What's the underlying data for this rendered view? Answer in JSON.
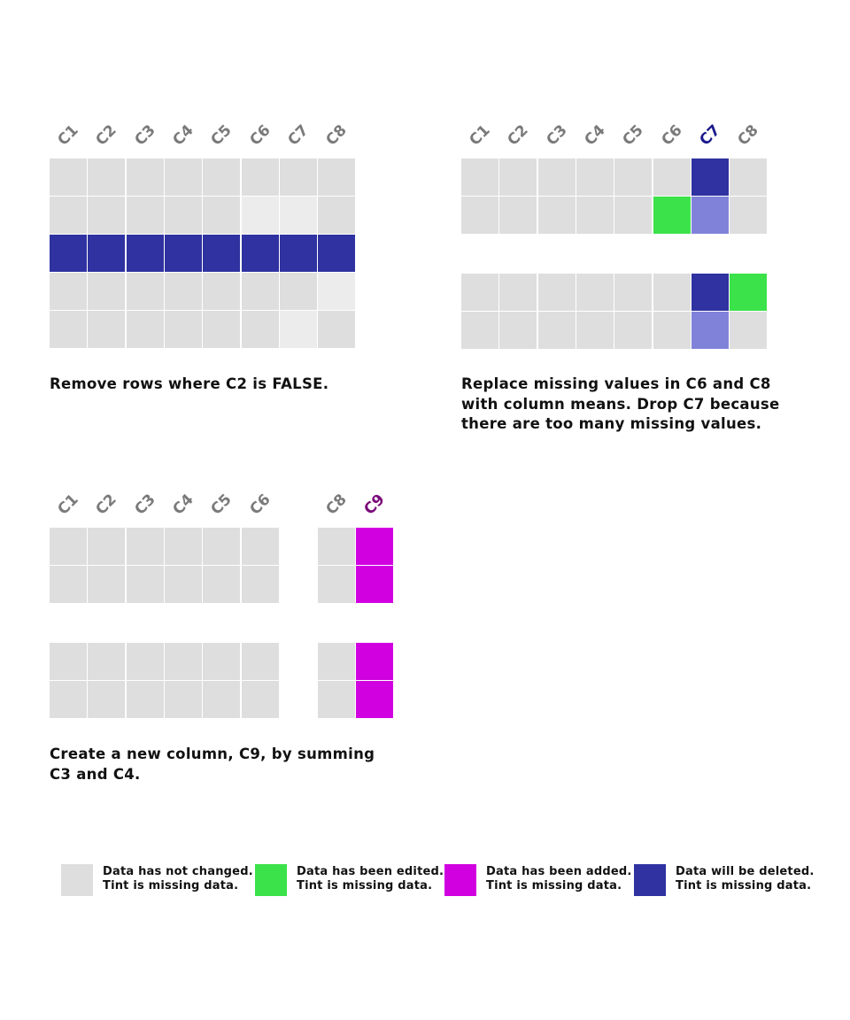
{
  "colors": {
    "unchanged": "#dedede",
    "unchanged_missing": "#ececec",
    "edited": "#3be24a",
    "added": "#d100e0",
    "deleted": "#2f32a0",
    "deleted_missing": "#8082d9",
    "label": "#7a7a7a",
    "label_deleted": "#1b1b8c",
    "label_added": "#7a0a7a"
  },
  "panels": [
    {
      "id": "remove-rows",
      "columns": [
        "C1",
        "C2",
        "C3",
        "C4",
        "C5",
        "C6",
        "C7",
        "C8"
      ],
      "caption": "Remove rows where C2 is FALSE.",
      "grid": [
        [
          "u",
          "u",
          "u",
          "u",
          "u",
          "u",
          "u",
          "u"
        ],
        [
          "u",
          "u",
          "u",
          "u",
          "u",
          "um",
          "um",
          "u"
        ],
        [
          "d",
          "d",
          "d",
          "d",
          "d",
          "d",
          "d",
          "d"
        ],
        [
          "u",
          "u",
          "u",
          "u",
          "u",
          "u",
          "u",
          "um"
        ],
        [
          "u",
          "u",
          "u",
          "u",
          "u",
          "u",
          "um",
          "u"
        ]
      ]
    },
    {
      "id": "replace-missing",
      "columns": [
        "C1",
        "C2",
        "C3",
        "C4",
        "C5",
        "C6",
        "C7",
        "C8"
      ],
      "highlight_column": "C7",
      "caption": "Replace missing values in C6 and C8 with column means. Drop C7 because there are too many missing values.",
      "grid": [
        [
          "u",
          "u",
          "u",
          "u",
          "u",
          "u",
          "d",
          "u"
        ],
        [
          "u",
          "u",
          "u",
          "u",
          "u",
          "e",
          "dm",
          "u"
        ],
        [
          "u",
          "u",
          "u",
          "u",
          "u",
          "u",
          "d",
          "e"
        ],
        [
          "u",
          "u",
          "u",
          "u",
          "u",
          "u",
          "dm",
          "u"
        ]
      ]
    },
    {
      "id": "new-column",
      "columns": [
        "C1",
        "C2",
        "C3",
        "C4",
        "C5",
        "C6",
        "",
        "C8",
        "C9"
      ],
      "highlight_column": "C9",
      "caption": "Create a new column, C9, by summing C3 and C4.",
      "grid": [
        [
          "u",
          "u",
          "u",
          "u",
          "u",
          "u",
          "",
          "u",
          "a"
        ],
        [
          "u",
          "u",
          "u",
          "u",
          "u",
          "u",
          "",
          "u",
          "a"
        ],
        [
          "u",
          "u",
          "u",
          "u",
          "u",
          "u",
          "",
          "u",
          "a"
        ],
        [
          "u",
          "u",
          "u",
          "u",
          "u",
          "u",
          "",
          "u",
          "a"
        ]
      ]
    }
  ],
  "legend": [
    {
      "key": "u",
      "line1": "Data has not changed.",
      "line2": "Tint is missing data."
    },
    {
      "key": "e",
      "line1": "Data has been edited.",
      "line2": "Tint is missing data."
    },
    {
      "key": "a",
      "line1": "Data has been added.",
      "line2": "Tint is missing data."
    },
    {
      "key": "d",
      "line1": "Data will be deleted.",
      "line2": "Tint is missing data."
    }
  ]
}
